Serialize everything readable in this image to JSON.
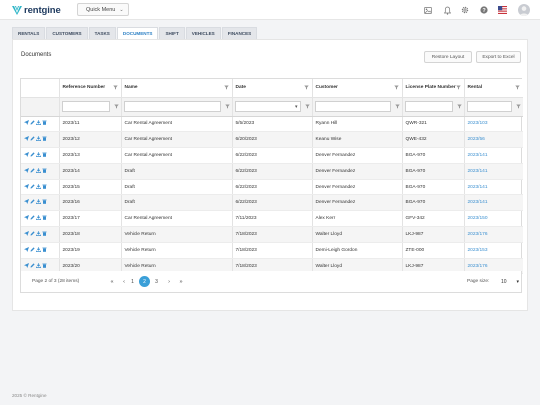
{
  "app": {
    "brand": "rentgine",
    "quick_menu": "Quick Menu"
  },
  "header_icons": [
    "image-icon",
    "bell-icon",
    "gear-icon",
    "help-icon",
    "us-flag-icon",
    "user-avatar-icon"
  ],
  "tabs": [
    {
      "label": "RENTALS",
      "active": false
    },
    {
      "label": "CUSTOMERS",
      "active": false
    },
    {
      "label": "TASKS",
      "active": false
    },
    {
      "label": "DOCUMENTS",
      "active": true
    },
    {
      "label": "SHIFT",
      "active": false
    },
    {
      "label": "VEHICLES",
      "active": false
    },
    {
      "label": "FINANCES",
      "active": false
    }
  ],
  "panel": {
    "title": "Documents",
    "restore_layout": "Restore Layout",
    "export_excel": "Export to Excel"
  },
  "table": {
    "columns": [
      "Reference Number",
      "Name",
      "Date",
      "Customer",
      "License Plate Number",
      "Rental"
    ],
    "rows": [
      [
        "2023/11",
        "Car Rental Agreement",
        "5/5/2023",
        "Ryann Hill",
        "QWR-321",
        "2023/103"
      ],
      [
        "2023/12",
        "Car Rental Agreement",
        "6/20/2023",
        "Keanu Wise",
        "QWE-432",
        "2023/56"
      ],
      [
        "2023/13",
        "Car Rental Agreement",
        "6/22/2023",
        "Denver Fernandez",
        "BGA-970",
        "2023/141"
      ],
      [
        "2023/14",
        "Draft",
        "6/22/2023",
        "Denver Fernandez",
        "BGA-970",
        "2023/141"
      ],
      [
        "2023/15",
        "Draft",
        "6/22/2023",
        "Denver Fernandez",
        "BGA-970",
        "2023/141"
      ],
      [
        "2023/16",
        "Draft",
        "6/22/2023",
        "Denver Fernandez",
        "BGA-970",
        "2023/141"
      ],
      [
        "2023/17",
        "Car Rental Agreement",
        "7/11/2023",
        "Alex Kerr",
        "GFV-342",
        "2023/150"
      ],
      [
        "2023/18",
        "Vehicle Return",
        "7/18/2023",
        "Walter Lloyd",
        "LKJ-987",
        "2023/176"
      ],
      [
        "2023/19",
        "Vehicle Return",
        "7/18/2023",
        "Demi-Leigh Gordon",
        "ZTE-000",
        "2023/153"
      ],
      [
        "2023/20",
        "Vehicle Return",
        "7/18/2023",
        "Walter Lloyd",
        "LKJ-987",
        "2023/176"
      ]
    ]
  },
  "pager": {
    "info": "Page 2 of 3 (28 items)",
    "pages": [
      "1",
      "2",
      "3"
    ],
    "current": "2",
    "size_label": "Page size:",
    "size_value": "10"
  },
  "footer": "2025 © Rentgine",
  "colors": {
    "accent": "#3a9fd8",
    "link": "#3a8fd0",
    "brand": "#1e3a5f",
    "logo_mark": "#2fb6c8"
  }
}
